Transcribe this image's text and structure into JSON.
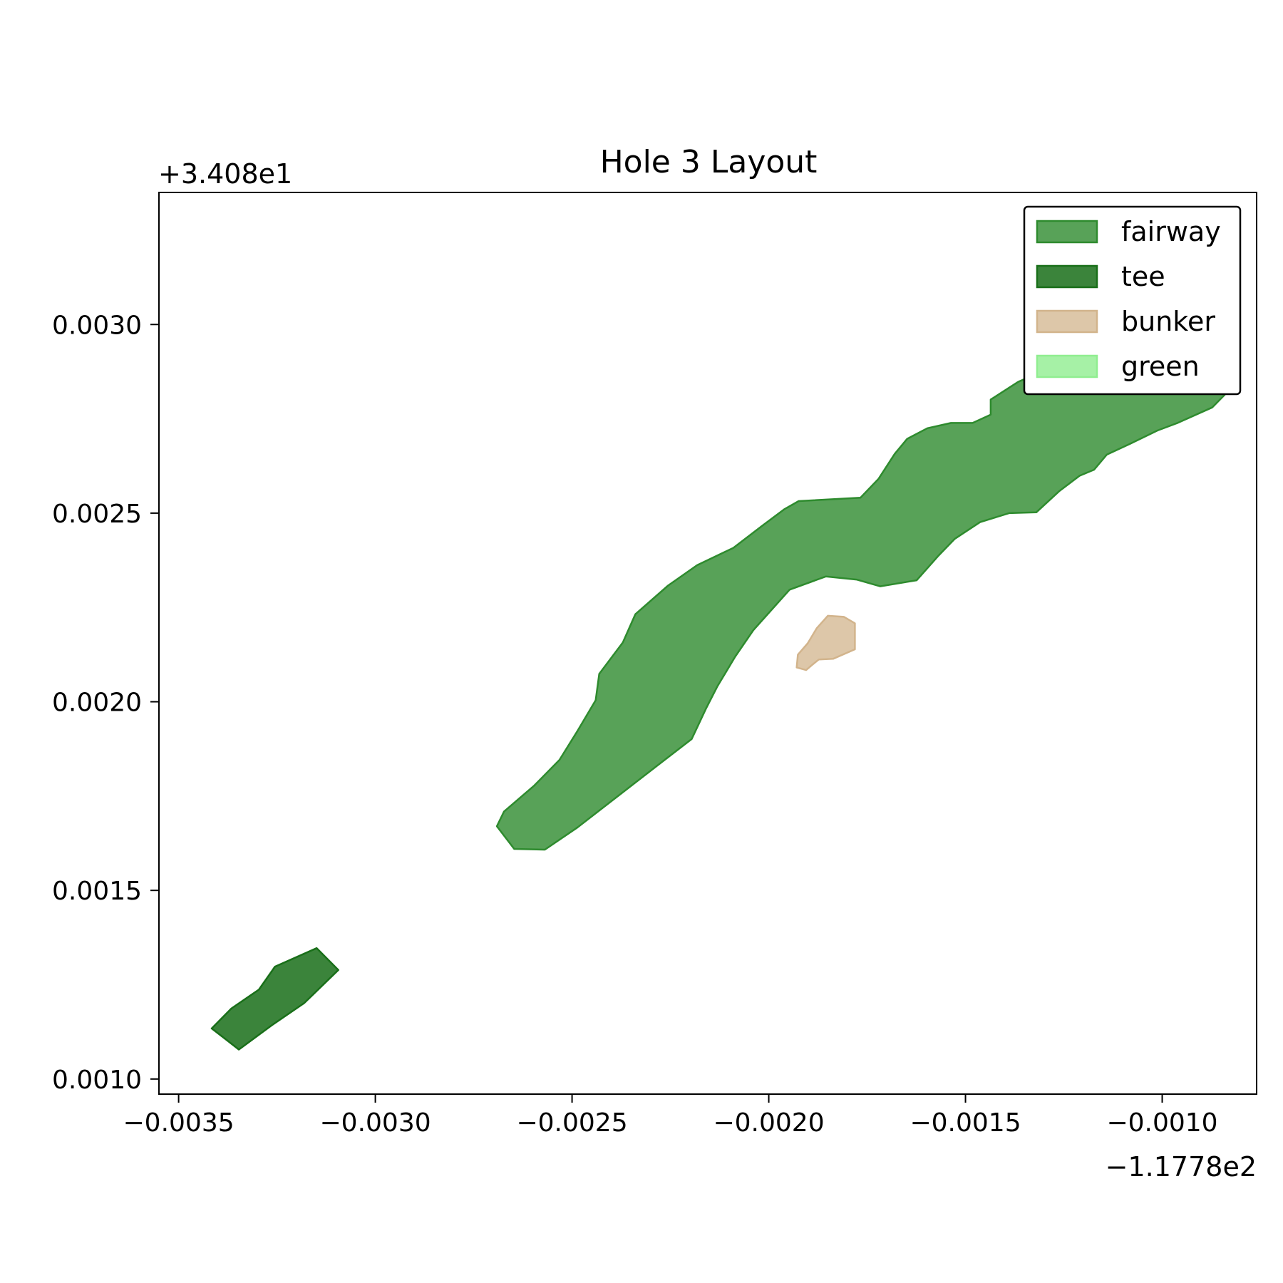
{
  "chart_data": {
    "type": "area",
    "title": "Hole 3 Layout",
    "xlabel": "",
    "ylabel": "",
    "x_offset_label": "−1.1778e2",
    "y_offset_label": "+3.408e1",
    "xlim": [
      -0.00355,
      -0.00076
    ],
    "ylim": [
      0.00096,
      0.00335
    ],
    "x_ticks": [
      -0.0035,
      -0.003,
      -0.0025,
      -0.002,
      -0.0015,
      -0.001
    ],
    "x_tick_labels": [
      "−0.0035",
      "−0.0030",
      "−0.0025",
      "−0.0020",
      "−0.0015",
      "−0.0010"
    ],
    "y_ticks": [
      0.001,
      0.0015,
      0.002,
      0.0025,
      0.003
    ],
    "y_tick_labels": [
      "0.0010",
      "0.0015",
      "0.0020",
      "0.0025",
      "0.0030"
    ],
    "grid": false,
    "legend_position": "top-right",
    "series": [
      {
        "name": "fairway",
        "fill": "#2e8b2e",
        "stroke": "#2e8b2e",
        "fill_opacity": 0.8,
        "points": [
          [
            -0.002691,
            0.00167
          ],
          [
            -0.002673,
            0.001709
          ],
          [
            -0.002597,
            0.001777
          ],
          [
            -0.002532,
            0.001846
          ],
          [
            -0.002486,
            0.001923
          ],
          [
            -0.00244,
            0.002004
          ],
          [
            -0.002431,
            0.002074
          ],
          [
            -0.002371,
            0.002157
          ],
          [
            -0.002339,
            0.002232
          ],
          [
            -0.002256,
            0.002308
          ],
          [
            -0.002182,
            0.002362
          ],
          [
            -0.00209,
            0.002408
          ],
          [
            -0.002016,
            0.002467
          ],
          [
            -0.001961,
            0.00251
          ],
          [
            -0.001924,
            0.002532
          ],
          [
            -0.001767,
            0.002541
          ],
          [
            -0.001721,
            0.002591
          ],
          [
            -0.00168,
            0.002657
          ],
          [
            -0.001648,
            0.002697
          ],
          [
            -0.001597,
            0.002725
          ],
          [
            -0.001537,
            0.002739
          ],
          [
            -0.001482,
            0.002739
          ],
          [
            -0.001436,
            0.002761
          ],
          [
            -0.001436,
            0.002801
          ],
          [
            -0.001366,
            0.002848
          ],
          [
            -0.001265,
            0.002893
          ],
          [
            -0.001187,
            0.002925
          ],
          [
            -0.001104,
            0.002905
          ],
          [
            -0.001003,
            0.0029
          ],
          [
            -0.000919,
            0.002866
          ],
          [
            -0.000827,
            0.002848
          ],
          [
            -0.000841,
            0.002814
          ],
          [
            -0.000873,
            0.00278
          ],
          [
            -0.000961,
            0.002739
          ],
          [
            -0.001012,
            0.002719
          ],
          [
            -0.001081,
            0.002684
          ],
          [
            -0.001141,
            0.002655
          ],
          [
            -0.001173,
            0.002615
          ],
          [
            -0.00121,
            0.002599
          ],
          [
            -0.001261,
            0.002559
          ],
          [
            -0.00132,
            0.002502
          ],
          [
            -0.001389,
            0.0025
          ],
          [
            -0.001463,
            0.002476
          ],
          [
            -0.001527,
            0.002432
          ],
          [
            -0.001568,
            0.002388
          ],
          [
            -0.001624,
            0.002322
          ],
          [
            -0.001717,
            0.002306
          ],
          [
            -0.001777,
            0.002324
          ],
          [
            -0.001855,
            0.002332
          ],
          [
            -0.001947,
            0.002297
          ],
          [
            -0.002039,
            0.00219
          ],
          [
            -0.002085,
            0.00212
          ],
          [
            -0.002131,
            0.00204
          ],
          [
            -0.002159,
            0.001983
          ],
          [
            -0.002196,
            0.001901
          ],
          [
            -0.002283,
            0.001831
          ],
          [
            -0.002376,
            0.001756
          ],
          [
            -0.002486,
            0.001667
          ],
          [
            -0.002569,
            0.001608
          ],
          [
            -0.002647,
            0.00161
          ]
        ]
      },
      {
        "name": "tee",
        "fill": "#196f19",
        "stroke": "#196f19",
        "fill_opacity": 0.85,
        "points": [
          [
            -0.003416,
            0.001134
          ],
          [
            -0.003366,
            0.001187
          ],
          [
            -0.003296,
            0.001237
          ],
          [
            -0.003255,
            0.001298
          ],
          [
            -0.003149,
            0.001347
          ],
          [
            -0.003094,
            0.001289
          ],
          [
            -0.003181,
            0.001201
          ],
          [
            -0.003264,
            0.001142
          ],
          [
            -0.003347,
            0.001078
          ],
          [
            -0.003375,
            0.001101
          ]
        ]
      },
      {
        "name": "bunker",
        "fill": "#d2b48c",
        "stroke": "#d2b48c",
        "fill_opacity": 0.75,
        "points": [
          [
            -0.001929,
            0.002091
          ],
          [
            -0.001926,
            0.002125
          ],
          [
            -0.001901,
            0.002155
          ],
          [
            -0.001878,
            0.002195
          ],
          [
            -0.00185,
            0.002228
          ],
          [
            -0.001809,
            0.002225
          ],
          [
            -0.001781,
            0.002208
          ],
          [
            -0.001781,
            0.002139
          ],
          [
            -0.001836,
            0.002114
          ],
          [
            -0.001873,
            0.002112
          ],
          [
            -0.001887,
            0.0021
          ],
          [
            -0.001905,
            0.002084
          ]
        ]
      },
      {
        "name": "green",
        "fill": "#90ee90",
        "stroke": "#90ee90",
        "fill_opacity": 0.8,
        "points": []
      }
    ]
  }
}
